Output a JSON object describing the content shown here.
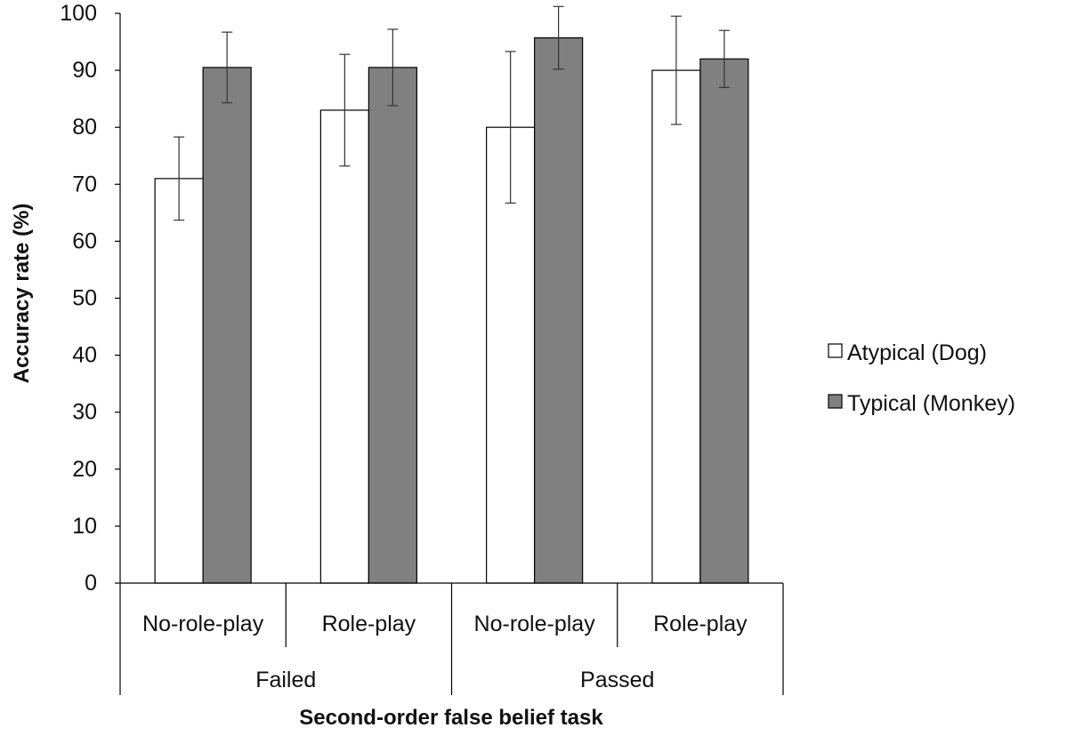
{
  "chart_data": {
    "type": "bar",
    "title": "",
    "xlabel": "Second-order false belief task",
    "ylabel": "Accuracy rate (%)",
    "ylim": [
      0,
      100
    ],
    "yticks": [
      "0",
      "10",
      "20",
      "30",
      "40",
      "50",
      "60",
      "70",
      "80",
      "90",
      "100"
    ],
    "grid": false,
    "legend_position": "right",
    "categories": [
      "No-role-play",
      "Role-play",
      "No-role-play",
      "Role-play"
    ],
    "groups": [
      "Failed",
      "Passed"
    ],
    "series": [
      {
        "name": "Atypical (Dog)",
        "color": "#ffffff",
        "values": [
          71,
          83,
          80,
          90
        ],
        "error": [
          7.3,
          9.8,
          13.3,
          9.5
        ]
      },
      {
        "name": "Typical (Monkey)",
        "color": "#808080",
        "values": [
          90.5,
          90.5,
          95.7,
          92
        ],
        "error": [
          6.2,
          6.7,
          5.5,
          5.0
        ]
      }
    ]
  }
}
